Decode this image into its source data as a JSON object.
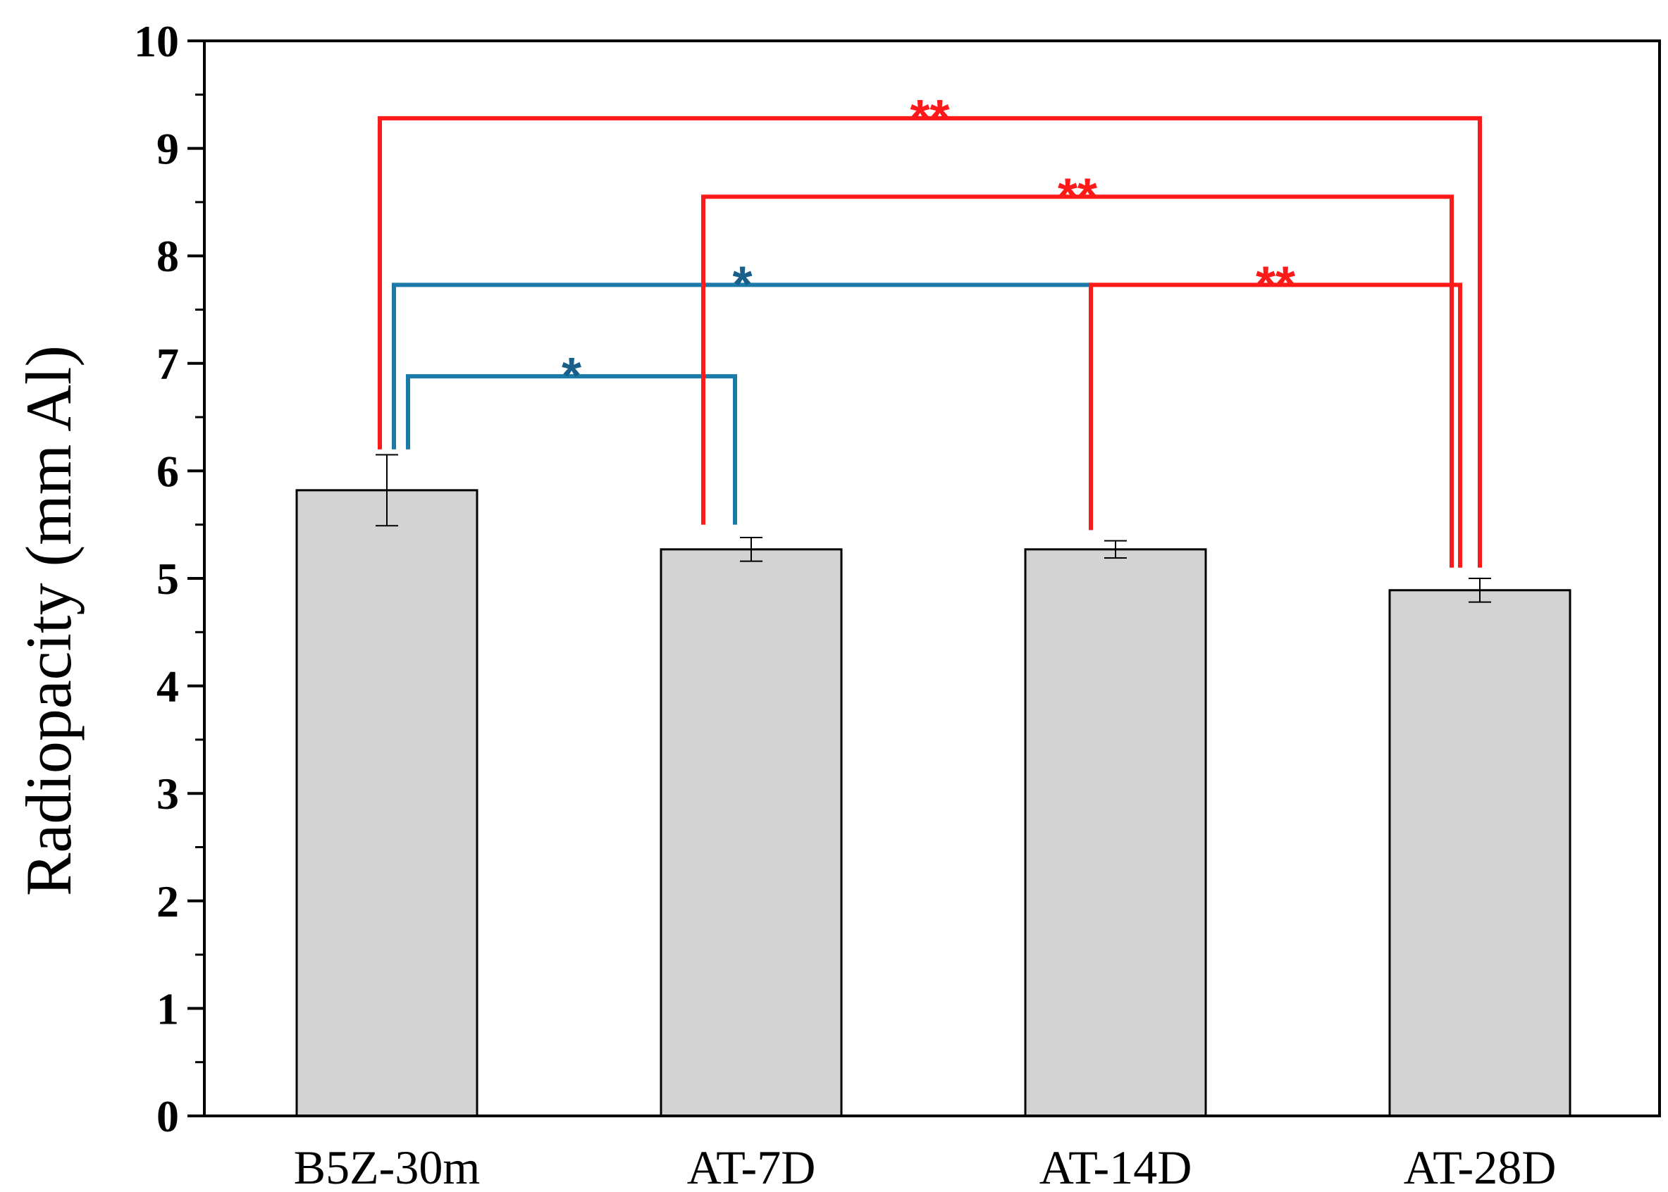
{
  "chart_data": {
    "type": "bar",
    "title": "",
    "xlabel": "",
    "ylabel": "Radiopacity (mm Al)",
    "ylim": [
      0,
      10
    ],
    "yticks": [
      "0",
      "1",
      "2",
      "3",
      "4",
      "5",
      "6",
      "7",
      "8",
      "9",
      "10"
    ],
    "categories": [
      "B5Z-30m",
      "AT-7D",
      "AT-14D",
      "AT-28D"
    ],
    "values": [
      5.82,
      5.27,
      5.27,
      4.89
    ],
    "errors": [
      0.33,
      0.11,
      0.08,
      0.11
    ],
    "bar_color": "#d3d3d3",
    "grid": false,
    "legend": "none",
    "significance": [
      {
        "from": 0,
        "to": 1,
        "level": 6.88,
        "label": "*",
        "color": "#1c7aa8",
        "label_color": "#1a5f8a"
      },
      {
        "from": 0,
        "to": 2,
        "level": 7.73,
        "label": "*",
        "color": "#1c7aa8",
        "label_color": "#1a5f8a"
      },
      {
        "from": 2,
        "to": 3,
        "level": 7.73,
        "label": "**",
        "color": "#ff1a1a",
        "label_color": "#ff1a1a"
      },
      {
        "from": 1,
        "to": 3,
        "level": 8.55,
        "label": "**",
        "color": "#ff1a1a",
        "label_color": "#ff1a1a"
      },
      {
        "from": 0,
        "to": 3,
        "level": 9.28,
        "label": "**",
        "color": "#ff1a1a",
        "label_color": "#ff1a1a"
      }
    ]
  }
}
